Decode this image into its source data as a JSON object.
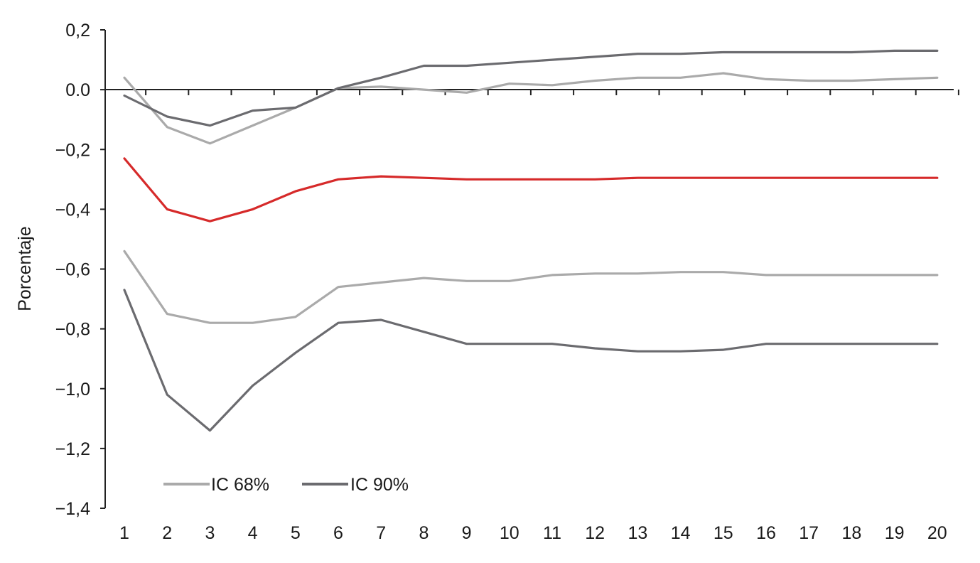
{
  "chart_data": {
    "type": "line",
    "title": "",
    "xlabel": "",
    "ylabel": "Porcentaje",
    "x": [
      1,
      2,
      3,
      4,
      5,
      6,
      7,
      8,
      9,
      10,
      11,
      12,
      13,
      14,
      15,
      16,
      17,
      18,
      19,
      20
    ],
    "x_tick_labels": [
      "1",
      "2",
      "3",
      "4",
      "5",
      "6",
      "7",
      "8",
      "9",
      "10",
      "11",
      "12",
      "13",
      "14",
      "15",
      "16",
      "17",
      "18",
      "19",
      "20"
    ],
    "ylim": [
      -1.4,
      0.2
    ],
    "y_ticks": [
      0.2,
      0.0,
      -0.2,
      -0.4,
      -0.6,
      -0.8,
      -1.0,
      -1.2,
      -1.4
    ],
    "y_tick_labels": [
      "0,2",
      "0.0",
      "−0,2",
      "−0,4",
      "−0,6",
      "−0,8",
      "−1,0",
      "−1,2",
      "−1,4"
    ],
    "grid": false,
    "legend_position": "bottom-left",
    "legend": [
      {
        "label": "IC 68%",
        "color": "#aaaaaa"
      },
      {
        "label": "IC 90%",
        "color": "#6b6b6f"
      }
    ],
    "series": [
      {
        "color": "#d62a2a",
        "role": "central",
        "values": [
          -0.23,
          -0.4,
          -0.44,
          -0.4,
          -0.34,
          -0.3,
          -0.29,
          -0.295,
          -0.3,
          -0.3,
          -0.3,
          -0.3,
          -0.295,
          -0.295,
          -0.295,
          -0.295,
          -0.295,
          -0.295,
          -0.295,
          -0.295
        ]
      },
      {
        "color": "#aaaaaa",
        "role": "IC 68% upper",
        "values": [
          0.04,
          -0.125,
          -0.18,
          -0.12,
          -0.06,
          0.005,
          0.01,
          0.0,
          -0.01,
          0.02,
          0.015,
          0.03,
          0.04,
          0.04,
          0.055,
          0.035,
          0.03,
          0.03,
          0.035,
          0.04
        ]
      },
      {
        "color": "#aaaaaa",
        "role": "IC 68% lower",
        "values": [
          -0.54,
          -0.75,
          -0.78,
          -0.78,
          -0.76,
          -0.66,
          -0.645,
          -0.63,
          -0.64,
          -0.64,
          -0.62,
          -0.615,
          -0.615,
          -0.61,
          -0.61,
          -0.62,
          -0.62,
          -0.62,
          -0.62,
          -0.62
        ]
      },
      {
        "color": "#6b6b6f",
        "role": "IC 90% upper",
        "values": [
          -0.02,
          -0.09,
          -0.12,
          -0.07,
          -0.06,
          0.005,
          0.04,
          0.08,
          0.08,
          0.09,
          0.1,
          0.11,
          0.12,
          0.12,
          0.125,
          0.125,
          0.125,
          0.125,
          0.13,
          0.13
        ]
      },
      {
        "color": "#6b6b6f",
        "role": "IC 90% lower",
        "values": [
          -0.67,
          -1.02,
          -1.14,
          -0.99,
          -0.88,
          -0.78,
          -0.77,
          -0.81,
          -0.85,
          -0.85,
          -0.85,
          -0.865,
          -0.875,
          -0.875,
          -0.87,
          -0.85,
          -0.85,
          -0.85,
          -0.85,
          -0.85
        ]
      }
    ]
  }
}
